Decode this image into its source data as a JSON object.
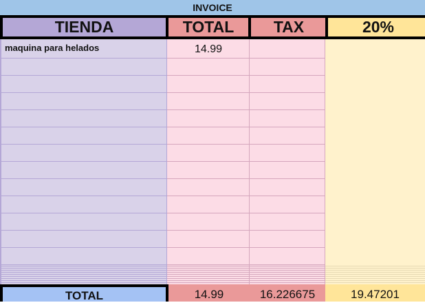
{
  "title": "INVOICE",
  "headers": [
    "TIENDA",
    "TOTAL",
    "TAX",
    "20%"
  ],
  "rows": [
    {
      "tienda": "maquina para helados",
      "total": "14.99",
      "tax": "",
      "pct": ""
    }
  ],
  "totals": {
    "label": "TOTAL",
    "total": "14.99",
    "tax": "16.226675",
    "pct": "19.47201"
  },
  "colors": {
    "title": "#9fc5e8",
    "tienda": "#b4a7d6",
    "total": "#ea9999",
    "pct": "#ffe599",
    "totalLabel": "#a4c2f4"
  }
}
